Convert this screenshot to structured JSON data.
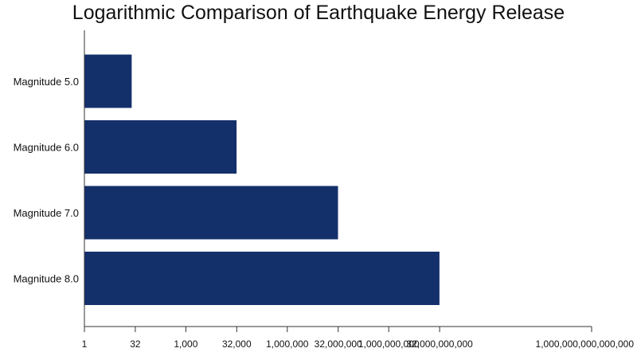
{
  "chart_data": {
    "type": "bar",
    "orientation": "horizontal",
    "title": "Logarithmic Comparison of Earthquake Energy Release",
    "xlabel": "",
    "ylabel": "",
    "x_scale": "log",
    "xlim": [
      1,
      1000000000000000
    ],
    "categories": [
      "Magnitude 5.0",
      "Magnitude 6.0",
      "Magnitude 7.0",
      "Magnitude 8.0"
    ],
    "values": [
      25,
      31623,
      31622777,
      31622776602
    ],
    "x_ticks": [
      {
        "value": 1,
        "label": "1"
      },
      {
        "value": 32,
        "label": "32"
      },
      {
        "value": 1000,
        "label": "1,000"
      },
      {
        "value": 32000,
        "label": "32,000"
      },
      {
        "value": 1000000,
        "label": "1,000,000"
      },
      {
        "value": 32000000,
        "label": "32,000,000"
      },
      {
        "value": 1000000000,
        "label": "1,000,000,000"
      },
      {
        "value": 32000000000,
        "label": "32,000,000,000"
      },
      {
        "value": 1000000000000000,
        "label": "1,000,000,000,000,000"
      }
    ],
    "bar_color": "#14306b",
    "axis_color": "#333333",
    "grid": false,
    "legend": "none"
  }
}
